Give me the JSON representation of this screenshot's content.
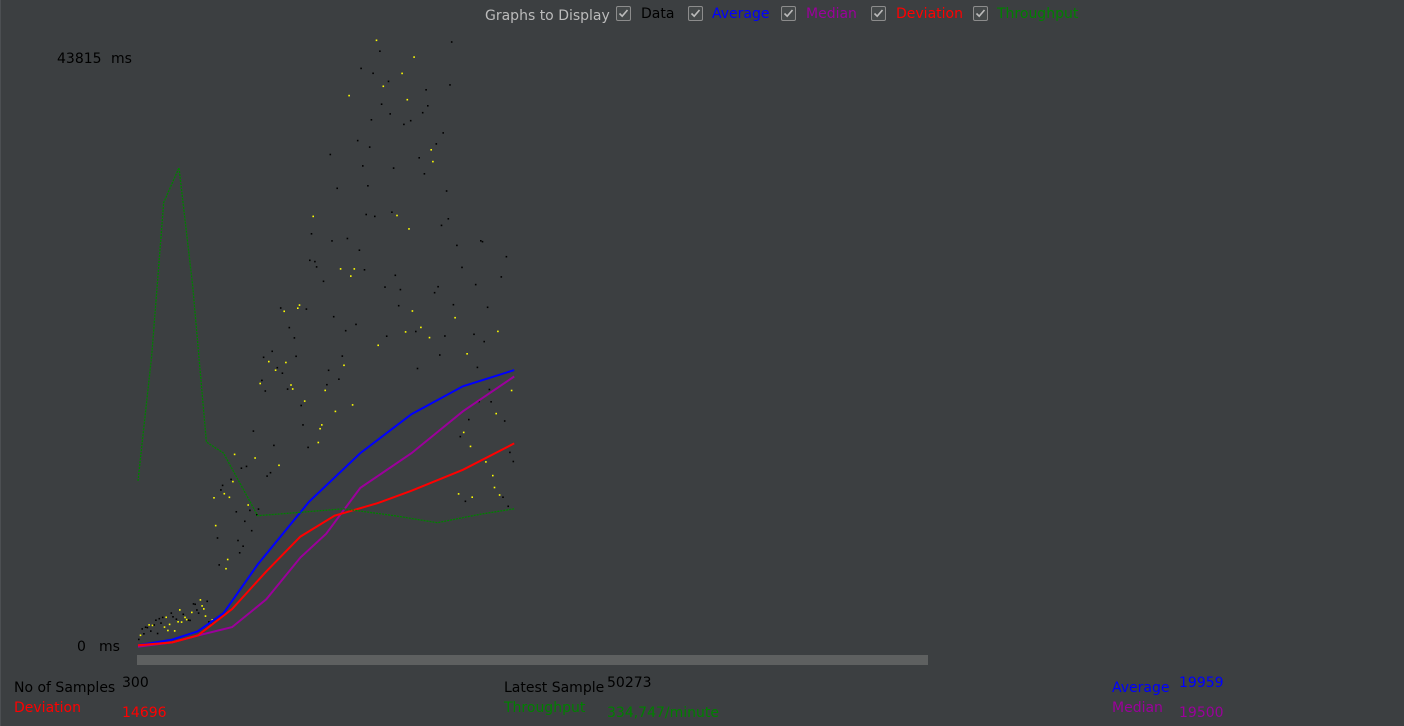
{
  "header": {
    "title": "Graphs to Display",
    "toggles": [
      {
        "label": "Data",
        "checked": true,
        "color": "#000000"
      },
      {
        "label": "Average",
        "checked": true,
        "color": "#0000ff"
      },
      {
        "label": "Median",
        "checked": true,
        "color": "#9b009b"
      },
      {
        "label": "Deviation",
        "checked": true,
        "color": "#ff0000"
      },
      {
        "label": "Throughput",
        "checked": true,
        "color": "#008000"
      }
    ]
  },
  "axis": {
    "ymax_value": "43815",
    "ymax_unit": "ms",
    "ymin_value": "0",
    "ymin_unit": "ms"
  },
  "stats": {
    "samples": {
      "label": "No of Samples",
      "value": "300",
      "color": "#000000"
    },
    "deviation": {
      "label": "Deviation",
      "value": "14696",
      "color": "#ff0000"
    },
    "latest": {
      "label": "Latest Sample",
      "value": "50273",
      "color": "#000000"
    },
    "throughput": {
      "label": "Throughput",
      "value": "334,747/minute",
      "color": "#008000"
    },
    "average": {
      "label": "Average",
      "value": "19959",
      "color": "#0000ff"
    },
    "median": {
      "label": "Median",
      "value": "19500",
      "color": "#9b009b"
    }
  },
  "chart_data": {
    "type": "line",
    "ylim": [
      0,
      43815
    ],
    "yunit": "ms",
    "xlim": [
      0,
      300
    ],
    "series": [
      {
        "name": "Average",
        "color": "#0000ff",
        "points": [
          [
            0,
            200
          ],
          [
            20,
            600
          ],
          [
            35,
            1200
          ],
          [
            50,
            2500
          ],
          [
            70,
            6000
          ],
          [
            100,
            10500
          ],
          [
            130,
            14000
          ],
          [
            160,
            16800
          ],
          [
            190,
            18800
          ],
          [
            220,
            19959
          ]
        ]
      },
      {
        "name": "Median",
        "color": "#9b009b",
        "points": [
          [
            0,
            100
          ],
          [
            20,
            400
          ],
          [
            35,
            900
          ],
          [
            55,
            1500
          ],
          [
            75,
            3500
          ],
          [
            95,
            6500
          ],
          [
            110,
            8200
          ],
          [
            130,
            11500
          ],
          [
            160,
            14000
          ],
          [
            190,
            17000
          ],
          [
            220,
            19500
          ]
        ]
      },
      {
        "name": "Deviation",
        "color": "#ff0000",
        "points": [
          [
            0,
            200
          ],
          [
            20,
            400
          ],
          [
            35,
            900
          ],
          [
            55,
            2800
          ],
          [
            75,
            5500
          ],
          [
            95,
            8000
          ],
          [
            115,
            9500
          ],
          [
            140,
            10400
          ],
          [
            160,
            11300
          ],
          [
            190,
            12800
          ],
          [
            220,
            14696
          ]
        ]
      },
      {
        "name": "Throughput",
        "color": "#008000",
        "points": [
          [
            0,
            12000
          ],
          [
            8,
            21000
          ],
          [
            15,
            32000
          ],
          [
            24,
            34500
          ],
          [
            32,
            26000
          ],
          [
            40,
            14800
          ],
          [
            50,
            14000
          ],
          [
            70,
            9500
          ],
          [
            90,
            9700
          ],
          [
            120,
            10000
          ],
          [
            150,
            9500
          ],
          [
            175,
            9000
          ],
          [
            200,
            9600
          ],
          [
            220,
            10000
          ]
        ]
      }
    ]
  }
}
